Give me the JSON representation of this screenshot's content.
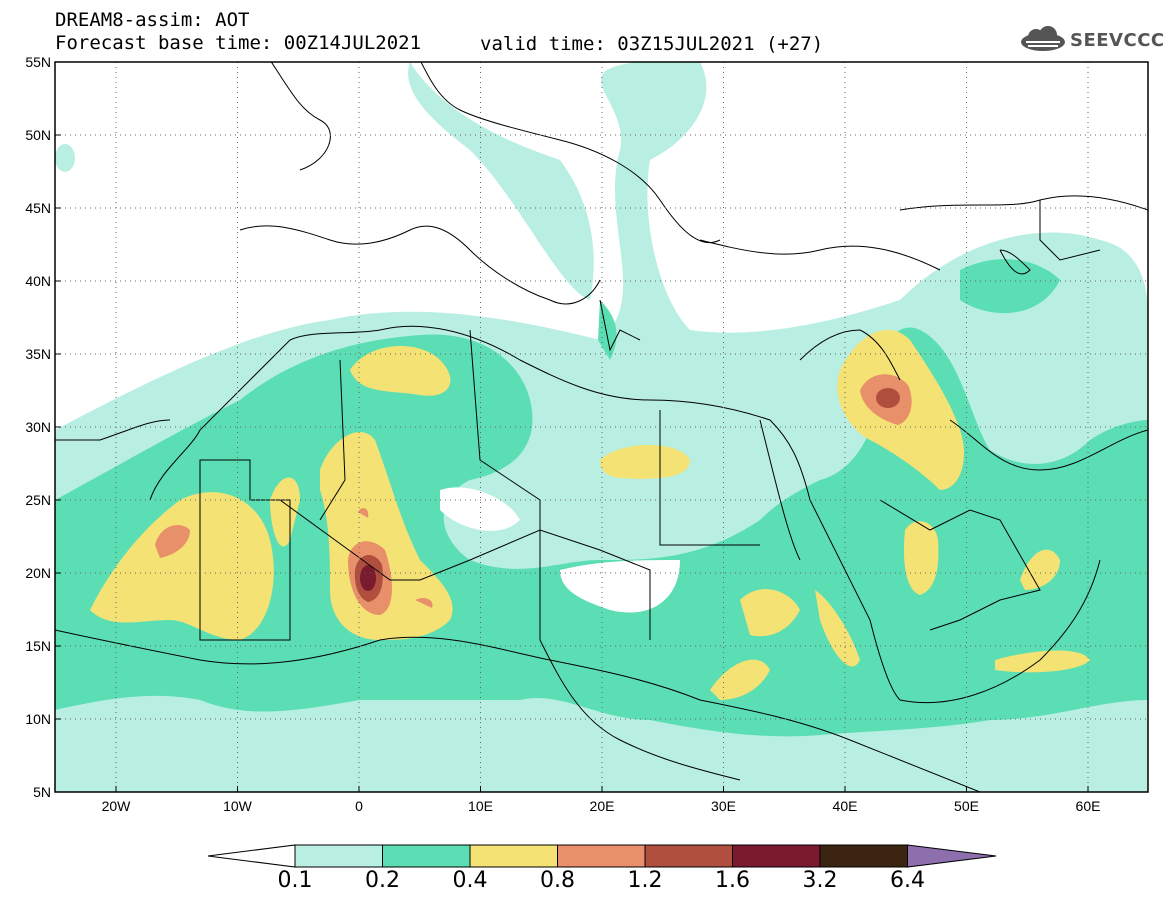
{
  "title": {
    "line1": "DREAM8-assim: AOT",
    "line2": "Forecast base time: 00Z14JUL2021",
    "valid": "valid time: 03Z15JUL2021 (+27)"
  },
  "logo": {
    "text": "SEEVCCC",
    "icon": "cloud-icon"
  },
  "axes": {
    "lat_labels": [
      "55N",
      "50N",
      "45N",
      "40N",
      "35N",
      "30N",
      "25N",
      "20N",
      "15N",
      "10N",
      "5N"
    ],
    "lon_labels": [
      "20W",
      "10W",
      "0",
      "10E",
      "20E",
      "30E",
      "40E",
      "50E",
      "60E"
    ]
  },
  "colorbar": {
    "labels": [
      "0.1",
      "0.2",
      "0.4",
      "0.8",
      "1.2",
      "1.6",
      "3.2",
      "6.4"
    ],
    "colors": [
      "#ffffff",
      "#b8efe2",
      "#5bdeb3",
      "#f5e275",
      "#e8906a",
      "#b14f3e",
      "#7a1a2e",
      "#3b2412",
      "#8e6fae"
    ]
  }
}
